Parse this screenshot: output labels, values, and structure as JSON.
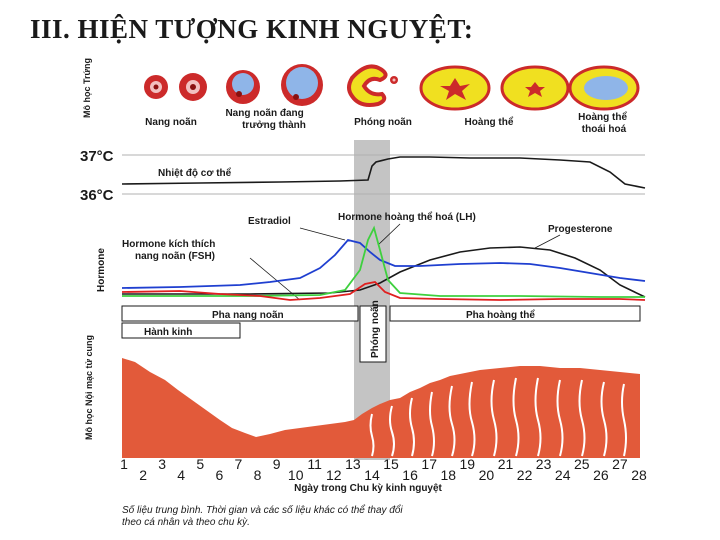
{
  "title": "III. HIỆN TƯỢNG KINH NGUYỆT:",
  "ovary": {
    "side_label": "Mô học Trứng",
    "stages": [
      "Nang noãn",
      "Nang noãn đang trưởng thành",
      "Phóng noãn",
      "Hoàng thể",
      "Hoàng thể thoái hoá"
    ]
  },
  "temperature": {
    "ticks": [
      "37°C",
      "36°C"
    ],
    "label": "Nhiệt độ cơ thể"
  },
  "hormone": {
    "side_label": "Hormone",
    "estradiol": "Estradiol",
    "lh": "Hormone hoàng thể hoá (LH)",
    "progesterone": "Progesterone",
    "fsh": "Hormone kích thích nang noãn (FSH)"
  },
  "phases": {
    "follicular": "Pha nang noãn",
    "luteal": "Pha hoàng thể",
    "menstruation": "Hành kinh",
    "ovulation": "Phóng noãn"
  },
  "endometrium": {
    "side_label": "Mô học Nội mạc tử cung"
  },
  "day_axis": {
    "numbers": [
      "1",
      "2",
      "3",
      "4",
      "5",
      "6",
      "7",
      "8",
      "9",
      "10",
      "11",
      "12",
      "13",
      "14",
      "15",
      "16",
      "17",
      "18",
      "19",
      "20",
      "21",
      "22",
      "23",
      "24",
      "25",
      "26",
      "27",
      "28"
    ],
    "label": "Ngày trong Chu kỳ kinh nguyệt"
  },
  "footnote": {
    "line1": "Số liệu trung bình. Thời gian và các số liệu khác có thể thay đổi",
    "line2": "theo cá nhân và theo chu kỳ."
  },
  "colors": {
    "fsh": "#1f3fd0",
    "lh": "#3ed03e",
    "estradiol": "#e02020",
    "progesterone": "#1a1a1a",
    "endometrium": "#e25a3a",
    "ovulation_band": "#c4c4c4"
  }
}
